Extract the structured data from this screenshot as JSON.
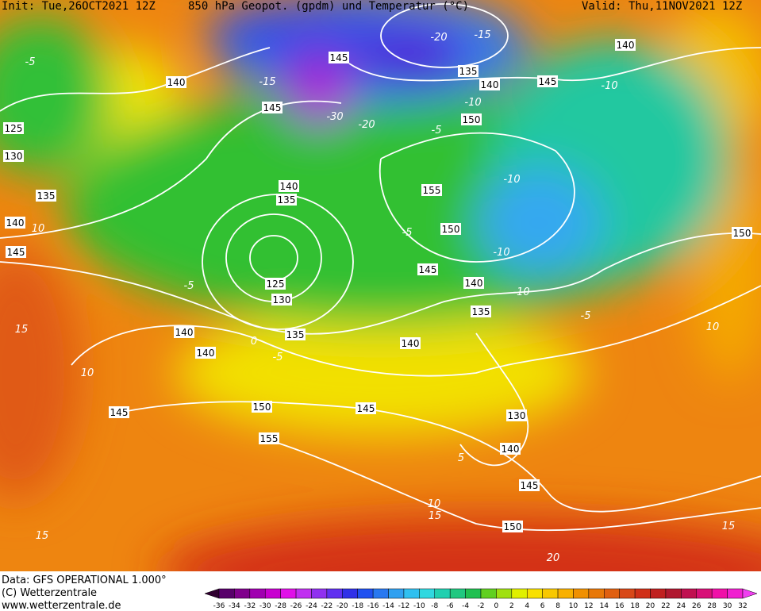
{
  "header": {
    "init": "Init: Tue,26OCT2021 12Z",
    "title": "850 hPa Geopot. (gpdm) und Temperatur (°C)",
    "valid": "Valid: Thu,11NOV2021 12Z"
  },
  "footer": {
    "data": "Data: GFS OPERATIONAL 1.000°",
    "copyright": "(C) Wetterzentrale",
    "url": "www.wetterzentrale.de"
  },
  "colorbar": {
    "ticks": [
      -36,
      -34,
      -32,
      -30,
      -28,
      -26,
      -24,
      -22,
      -20,
      -18,
      -16,
      -14,
      -12,
      -10,
      -8,
      -6,
      -4,
      -2,
      0,
      2,
      4,
      6,
      8,
      10,
      12,
      14,
      16,
      18,
      20,
      22,
      24,
      26,
      28,
      30,
      32
    ]
  },
  "geopotential_labels": [
    145,
    140,
    145,
    135,
    140,
    145,
    140,
    125,
    130,
    150,
    140,
    135,
    155,
    135,
    140,
    150,
    145,
    150,
    145,
    140,
    125,
    130,
    135,
    140,
    135,
    140,
    140,
    145,
    150,
    145,
    130,
    155,
    140,
    145,
    150
  ],
  "temperature_labels": [
    -5,
    -20,
    -15,
    -15,
    -30,
    -10,
    -10,
    -20,
    -5,
    -10,
    -5,
    -10,
    -5,
    -10,
    0,
    -5,
    15,
    10,
    10,
    -5,
    5,
    10,
    15,
    15,
    15,
    20,
    10
  ]
}
